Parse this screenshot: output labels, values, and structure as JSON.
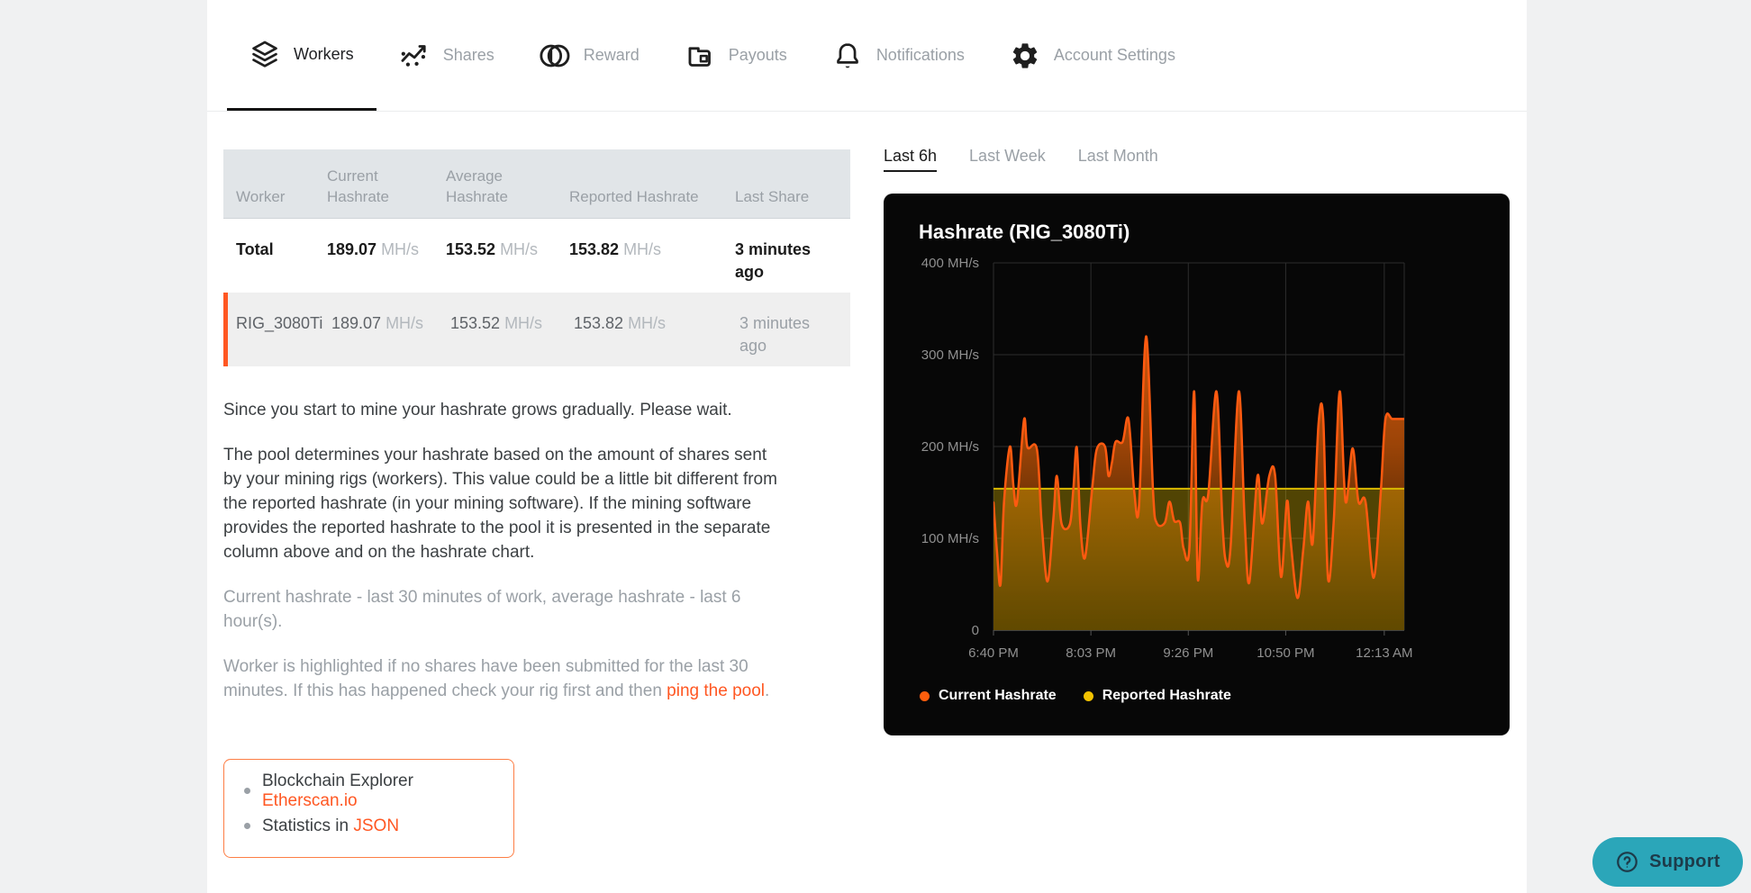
{
  "nav": {
    "items": [
      {
        "label": "Workers",
        "icon": "layers-icon",
        "active": true
      },
      {
        "label": "Shares",
        "icon": "scatter-trend-icon",
        "active": false
      },
      {
        "label": "Reward",
        "icon": "coins-icon",
        "active": false
      },
      {
        "label": "Payouts",
        "icon": "wallet-icon",
        "active": false
      },
      {
        "label": "Notifications",
        "icon": "bell-icon",
        "active": false
      },
      {
        "label": "Account Settings",
        "icon": "gear-icon",
        "active": false
      }
    ]
  },
  "time_tabs": [
    {
      "label": "Last 6h",
      "active": true
    },
    {
      "label": "Last Week",
      "active": false
    },
    {
      "label": "Last Month",
      "active": false
    }
  ],
  "table": {
    "headers": [
      "Worker",
      "Current Hashrate",
      "Average Hashrate",
      "Reported Hashrate",
      "Last Share"
    ],
    "unit": "MH/s",
    "rows": [
      {
        "worker": "Total",
        "current": "189.07",
        "average": "153.52",
        "reported": "153.82",
        "last_share": "3 minutes ago",
        "emphasis": true,
        "highlighted": false
      },
      {
        "worker": "RIG_3080Ti",
        "current": "189.07",
        "average": "153.52",
        "reported": "153.82",
        "last_share": "3 minutes ago",
        "emphasis": false,
        "highlighted": true
      }
    ]
  },
  "info": {
    "p1": "Since you start to mine your hashrate grows gradually. Please wait.",
    "p2": "The pool determines your hashrate based on the amount of shares sent by your mining rigs (workers). This value could be a little bit different from the reported hashrate (in your mining software). If the mining software provides the reported hashrate to the pool it is presented in the separate column above and on the hashrate chart.",
    "p3": "Current hashrate - last 30 minutes of work, average hashrate - last 6 hour(s).",
    "p4_before": "Worker is highlighted if no shares have been submitted for the last 30 minutes. If this has happened check your rig first and then ",
    "p4_link": "ping the pool",
    "p4_after": "."
  },
  "links_box": {
    "items": [
      {
        "before": "Blockchain Explorer ",
        "link": "Etherscan.io"
      },
      {
        "before": "Statistics in ",
        "link": "JSON"
      }
    ]
  },
  "support": {
    "label": "Support",
    "icon": "question-circle-icon"
  },
  "colors": {
    "accent_orange": "#ff5722",
    "support_bg": "#2ba6b9",
    "support_fg": "#1d3b4a",
    "panel_bg": "#070707",
    "grid": "#2d2d2d",
    "axis": "#555555",
    "tick_text": "#909090"
  },
  "chart_data": {
    "type": "area",
    "title": "Hashrate (RIG_3080Ti)",
    "ylim": [
      0,
      400
    ],
    "y_tick_values": [
      400,
      300,
      200,
      100,
      0
    ],
    "y_ticks": [
      "400 MH/s",
      "300 MH/s",
      "200 MH/s",
      "100 MH/s",
      "0"
    ],
    "x_domain_minutes": [
      0,
      350
    ],
    "x_tick_minutes": [
      0,
      83,
      166,
      249,
      333
    ],
    "x_ticks": [
      "6:40 PM",
      "8:03 PM",
      "9:26 PM",
      "10:50 PM",
      "12:13 AM"
    ],
    "grid": true,
    "legend_position": "bottom-left",
    "series": [
      {
        "name": "Current Hashrate",
        "color": "#ff5a10",
        "legend_color": "#ff5e0d",
        "points": [
          [
            0,
            139
          ],
          [
            3,
            85
          ],
          [
            6,
            50
          ],
          [
            9,
            140
          ],
          [
            14,
            200
          ],
          [
            17,
            157
          ],
          [
            20,
            139
          ],
          [
            26,
            229
          ],
          [
            29,
            199
          ],
          [
            37,
            197
          ],
          [
            41,
            117
          ],
          [
            46,
            53
          ],
          [
            51,
            121
          ],
          [
            54,
            168
          ],
          [
            58,
            116
          ],
          [
            65,
            115
          ],
          [
            68,
            153
          ],
          [
            71,
            199
          ],
          [
            74,
            115
          ],
          [
            78,
            79
          ],
          [
            84,
            153
          ],
          [
            88,
            197
          ],
          [
            95,
            200
          ],
          [
            98,
            168
          ],
          [
            101,
            183
          ],
          [
            104,
            205
          ],
          [
            110,
            205
          ],
          [
            115,
            230
          ],
          [
            120,
            150
          ],
          [
            124,
            135
          ],
          [
            130,
            320
          ],
          [
            136,
            150
          ],
          [
            139,
            117
          ],
          [
            146,
            117
          ],
          [
            150,
            140
          ],
          [
            154,
            119
          ],
          [
            159,
            117
          ],
          [
            162,
            89
          ],
          [
            167,
            90
          ],
          [
            171,
            260
          ],
          [
            174,
            57
          ],
          [
            178,
            140
          ],
          [
            183,
            148
          ],
          [
            190,
            260
          ],
          [
            195,
            120
          ],
          [
            198,
            75
          ],
          [
            202,
            90
          ],
          [
            209,
            260
          ],
          [
            214,
            120
          ],
          [
            218,
            52
          ],
          [
            225,
            168
          ],
          [
            229,
            116
          ],
          [
            235,
            168
          ],
          [
            240,
            168
          ],
          [
            245,
            58
          ],
          [
            250,
            140
          ],
          [
            253,
            100
          ],
          [
            259,
            35
          ],
          [
            264,
            88
          ],
          [
            268,
            140
          ],
          [
            272,
            95
          ],
          [
            277,
            225
          ],
          [
            281,
            230
          ],
          [
            285,
            57
          ],
          [
            290,
            120
          ],
          [
            295,
            260
          ],
          [
            300,
            140
          ],
          [
            306,
            198
          ],
          [
            311,
            140
          ],
          [
            317,
            140
          ],
          [
            324,
            57
          ],
          [
            330,
            150
          ],
          [
            334,
            230
          ],
          [
            340,
            230
          ],
          [
            350,
            230
          ]
        ]
      },
      {
        "name": "Reported Hashrate",
        "color": "#d9b800",
        "legend_color": "#f2c200",
        "flat_value": 154
      }
    ]
  }
}
